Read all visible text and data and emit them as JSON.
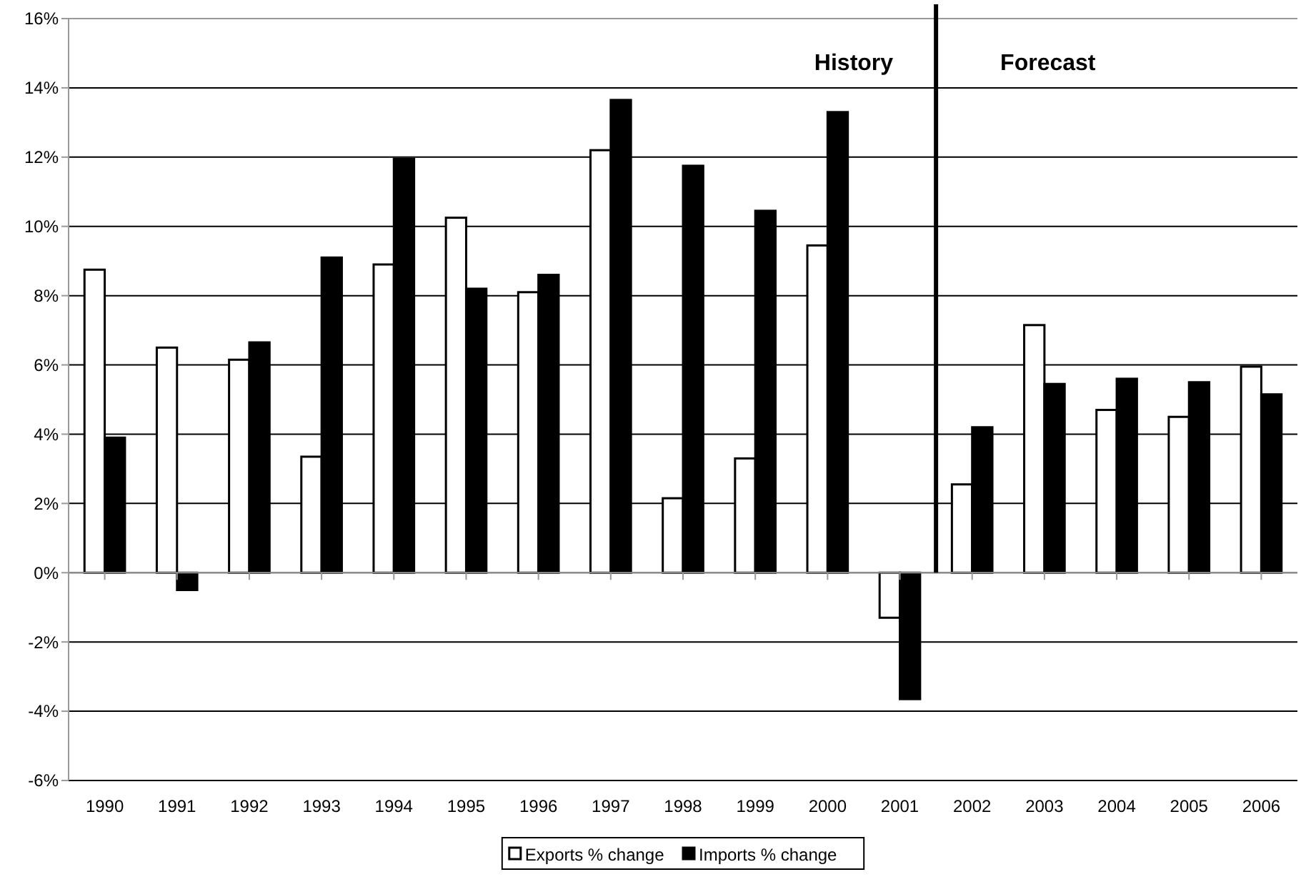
{
  "chart_data": {
    "type": "bar",
    "x": [
      1990,
      1991,
      1992,
      1993,
      1994,
      1995,
      1996,
      1997,
      1998,
      1999,
      2000,
      2001,
      2002,
      2003,
      2004,
      2005,
      2006
    ],
    "series": [
      {
        "name": "Exports % change",
        "color": "#ffffff",
        "values": [
          8.75,
          6.5,
          6.15,
          3.35,
          8.9,
          10.25,
          8.1,
          12.2,
          2.15,
          3.3,
          9.45,
          -1.3,
          2.55,
          7.15,
          4.7,
          4.5,
          5.95
        ]
      },
      {
        "name": "Imports % change",
        "color": "#000000",
        "values": [
          3.9,
          -0.5,
          6.65,
          9.1,
          11.95,
          8.2,
          8.6,
          13.65,
          11.75,
          10.45,
          13.3,
          -3.65,
          4.2,
          5.45,
          5.6,
          5.5,
          5.15
        ]
      }
    ],
    "xlim": [
      1989.5,
      2006.5
    ],
    "xticks": [
      1990,
      1991,
      1992,
      1993,
      1994,
      1995,
      1996,
      1997,
      1998,
      1999,
      2000,
      2001,
      2002,
      2003,
      2004,
      2005,
      2006
    ],
    "ylim": [
      -6,
      16
    ],
    "yticks": [
      {
        "value": -6,
        "label": "-6%"
      },
      {
        "value": -4,
        "label": "-4%"
      },
      {
        "value": -2,
        "label": "-2%"
      },
      {
        "value": 0,
        "label": "0%"
      },
      {
        "value": 2,
        "label": "2%"
      },
      {
        "value": 4,
        "label": "4%"
      },
      {
        "value": 6,
        "label": "6%"
      },
      {
        "value": 8,
        "label": "8%"
      },
      {
        "value": 10,
        "label": "10%"
      },
      {
        "value": 12,
        "label": "12%"
      },
      {
        "value": 14,
        "label": "14%"
      },
      {
        "value": 16,
        "label": "16%"
      }
    ],
    "grid": "y",
    "legend": "bottom",
    "ref_lines": [
      {
        "axis": "x",
        "value": 2001.5,
        "color": "#000000"
      }
    ],
    "annotations": [
      "History",
      "Forecast"
    ]
  }
}
